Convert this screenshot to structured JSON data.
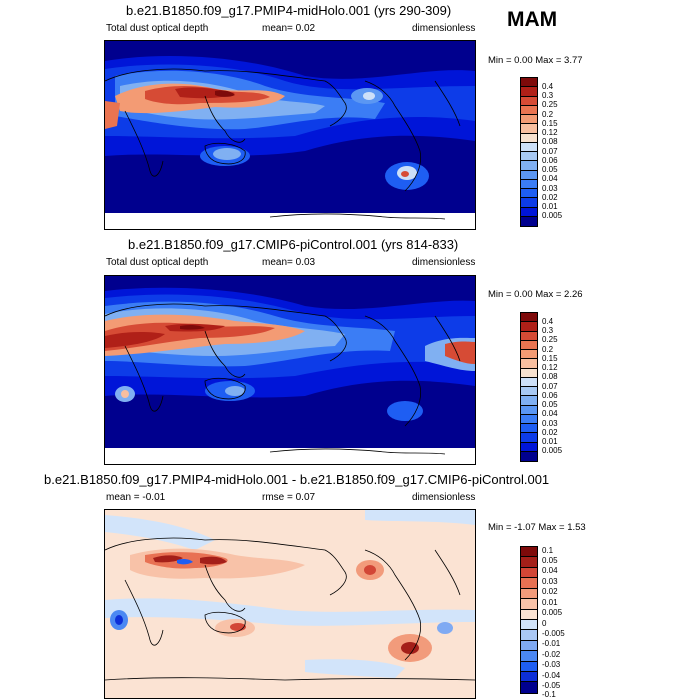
{
  "season": "MAM",
  "colors": {
    "dust": [
      "#00008e",
      "#0015d8",
      "#0d3ce8",
      "#1e5ef3",
      "#3b7df5",
      "#5b97f3",
      "#80b0f2",
      "#a8c9f3",
      "#cde0f8",
      "#f7e1cf",
      "#f8bfa0",
      "#f39b74",
      "#ea7451",
      "#d64b35",
      "#b02018",
      "#7e0a0a"
    ],
    "diff": [
      "#00008e",
      "#0d2fd8",
      "#1e5ef3",
      "#4b88f3",
      "#7faaf3",
      "#aac8f5",
      "#d2e4fa",
      "#fbe3d3",
      "#f8c2a8",
      "#f29b7b",
      "#e87153",
      "#d24636",
      "#a41f19",
      "#7e0a0a"
    ]
  },
  "panels": [
    {
      "title": "b.e21.B1850.f09_g17.PMIP4-midHolo.001 (yrs 290-309)",
      "left": "Total dust optical depth",
      "mean": "mean=  0.02",
      "units": "dimensionless",
      "minmax": "Min =   0.00 Max =   3.77",
      "levels": [
        "0.4",
        "0.3",
        "0.25",
        "0.2",
        "0.15",
        "0.12",
        "0.08",
        "0.07",
        "0.06",
        "0.05",
        "0.04",
        "0.03",
        "0.02",
        "0.01",
        "0.005"
      ]
    },
    {
      "title": "b.e21.B1850.f09_g17.CMIP6-piControl.001 (yrs 814-833)",
      "left": "Total dust optical depth",
      "mean": "mean=  0.03",
      "units": "dimensionless",
      "minmax": "Min =   0.00 Max =   2.26",
      "levels": [
        "0.4",
        "0.3",
        "0.25",
        "0.2",
        "0.15",
        "0.12",
        "0.08",
        "0.07",
        "0.06",
        "0.05",
        "0.04",
        "0.03",
        "0.02",
        "0.01",
        "0.005"
      ]
    },
    {
      "title": "b.e21.B1850.f09_g17.PMIP4-midHolo.001 - b.e21.B1850.f09_g17.CMIP6-piControl.001",
      "left": "mean =  -0.01",
      "mean": "rmse =  0.07",
      "units": "dimensionless",
      "minmax": "Min =  -1.07 Max =   1.53",
      "levels": [
        "0.1",
        "0.05",
        "0.04",
        "0.03",
        "0.02",
        "0.01",
        "0.005",
        "0",
        "-0.005",
        "-0.01",
        "-0.02",
        "-0.03",
        "-0.04",
        "-0.05",
        "-0.1"
      ]
    }
  ]
}
